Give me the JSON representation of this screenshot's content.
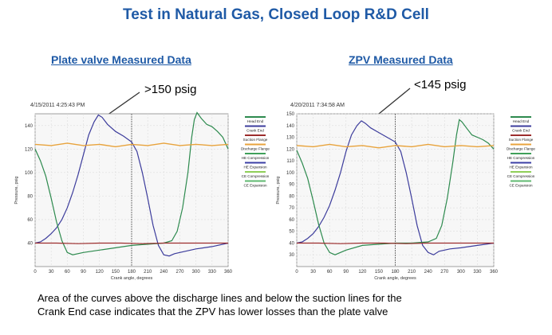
{
  "slide_title": "Test in Natural Gas, Closed Loop R&D Cell",
  "caption": {
    "line1": "Area of the curves above the discharge lines and below the suction lines for the",
    "line2": "Crank End case indicates that the ZPV has lower losses than the plate valve"
  },
  "colors": {
    "head_end": "#2d8a4e",
    "crank_end": "#3c3c9c",
    "suction_flange": "#9c2c2c",
    "discharge_flange": "#e8a33c",
    "he_compression": "#3fa05a",
    "he_expansion": "#3b3fa5",
    "ce_compression": "#8fcf58",
    "ce_expansion": "#5fb870"
  },
  "chart_data": [
    {
      "type": "line",
      "heading": "Plate valve Measured Data",
      "timestamp": "4/15/2011 4:25:43 PM",
      "callout": ">150 psig",
      "xlabel": "Crank angle, degrees",
      "ylabel": "Pressure, psig",
      "xlim": [
        0,
        360
      ],
      "ylim": [
        20,
        150
      ],
      "x_ticks": [
        0,
        30,
        60,
        90,
        120,
        150,
        180,
        210,
        240,
        270,
        300,
        330,
        360
      ],
      "y_ticks": [
        40,
        60,
        80,
        100,
        120,
        140
      ],
      "vline_x": 180,
      "legend": [
        "Head End",
        "Crank End",
        "Suction Flange",
        "Discharge Flange",
        "HE Compression",
        "HE Expansion",
        "CE Compression",
        "CE Expansion"
      ],
      "series": [
        {
          "key": "crank_end",
          "points": [
            [
              0,
              40
            ],
            [
              10,
              41
            ],
            [
              20,
              44
            ],
            [
              30,
              48
            ],
            [
              40,
              53
            ],
            [
              50,
              60
            ],
            [
              60,
              70
            ],
            [
              70,
              83
            ],
            [
              80,
              98
            ],
            [
              90,
              115
            ],
            [
              100,
              132
            ],
            [
              110,
              143
            ],
            [
              118,
              149
            ],
            [
              125,
              147
            ],
            [
              135,
              141
            ],
            [
              150,
              135
            ],
            [
              165,
              131
            ],
            [
              180,
              126
            ],
            [
              190,
              118
            ],
            [
              200,
              100
            ],
            [
              210,
              78
            ],
            [
              220,
              55
            ],
            [
              230,
              38
            ],
            [
              240,
              30
            ],
            [
              250,
              29
            ],
            [
              260,
              31
            ],
            [
              280,
              33
            ],
            [
              300,
              35
            ],
            [
              330,
              37
            ],
            [
              360,
              40
            ]
          ]
        },
        {
          "key": "head_end",
          "points": [
            [
              0,
              120
            ],
            [
              10,
              110
            ],
            [
              20,
              97
            ],
            [
              30,
              78
            ],
            [
              40,
              58
            ],
            [
              50,
              42
            ],
            [
              60,
              32
            ],
            [
              70,
              30
            ],
            [
              90,
              32
            ],
            [
              120,
              34
            ],
            [
              150,
              36
            ],
            [
              180,
              38
            ],
            [
              210,
              39
            ],
            [
              240,
              40
            ],
            [
              255,
              42
            ],
            [
              265,
              50
            ],
            [
              275,
              70
            ],
            [
              285,
              100
            ],
            [
              292,
              130
            ],
            [
              297,
              145
            ],
            [
              302,
              151
            ],
            [
              310,
              146
            ],
            [
              320,
              141
            ],
            [
              330,
              139
            ],
            [
              340,
              135
            ],
            [
              350,
              130
            ],
            [
              360,
              120
            ]
          ]
        },
        {
          "key": "suction_flange",
          "points": [
            [
              0,
              40
            ],
            [
              40,
              40
            ],
            [
              80,
              39.5
            ],
            [
              120,
              40
            ],
            [
              160,
              40
            ],
            [
              200,
              39.5
            ],
            [
              240,
              40
            ],
            [
              280,
              40
            ],
            [
              320,
              40
            ],
            [
              360,
              40
            ]
          ]
        },
        {
          "key": "discharge_flange",
          "points": [
            [
              0,
              124
            ],
            [
              30,
              123
            ],
            [
              60,
              125
            ],
            [
              90,
              123
            ],
            [
              120,
              124
            ],
            [
              150,
              122
            ],
            [
              180,
              124
            ],
            [
              210,
              123
            ],
            [
              240,
              125
            ],
            [
              270,
              123
            ],
            [
              300,
              124
            ],
            [
              330,
              123
            ],
            [
              360,
              124
            ]
          ]
        }
      ]
    },
    {
      "type": "line",
      "heading": "ZPV Measured Data",
      "timestamp": "4/20/2011 7:34:58 AM",
      "callout": "<145 psig",
      "xlabel": "Crank angle, degrees",
      "ylabel": "Pressure, psig",
      "xlim": [
        0,
        360
      ],
      "ylim": [
        20,
        150
      ],
      "x_ticks": [
        0,
        30,
        60,
        90,
        120,
        150,
        180,
        210,
        240,
        270,
        300,
        330,
        360
      ],
      "y_ticks": [
        30,
        40,
        50,
        60,
        70,
        80,
        90,
        100,
        110,
        120,
        130,
        140,
        150
      ],
      "vline_x": 180,
      "legend": [
        "Head End",
        "Crank End",
        "Suction Flange",
        "Discharge Flange",
        "HE Compression",
        "HE Expansion",
        "CE Compression",
        "CE Expansion"
      ],
      "series": [
        {
          "key": "crank_end",
          "points": [
            [
              0,
              40
            ],
            [
              10,
              41
            ],
            [
              20,
              44
            ],
            [
              30,
              48
            ],
            [
              40,
              54
            ],
            [
              50,
              62
            ],
            [
              60,
              72
            ],
            [
              70,
              85
            ],
            [
              80,
              100
            ],
            [
              90,
              118
            ],
            [
              100,
              132
            ],
            [
              110,
              140
            ],
            [
              118,
              144
            ],
            [
              125,
              142
            ],
            [
              135,
              138
            ],
            [
              150,
              134
            ],
            [
              165,
              130
            ],
            [
              180,
              126
            ],
            [
              190,
              118
            ],
            [
              200,
              100
            ],
            [
              210,
              78
            ],
            [
              220,
              55
            ],
            [
              230,
              38
            ],
            [
              240,
              32
            ],
            [
              250,
              30
            ],
            [
              260,
              33
            ],
            [
              280,
              35
            ],
            [
              300,
              36
            ],
            [
              330,
              38
            ],
            [
              360,
              40
            ]
          ]
        },
        {
          "key": "head_end",
          "points": [
            [
              0,
              119
            ],
            [
              10,
              108
            ],
            [
              20,
              95
            ],
            [
              30,
              76
            ],
            [
              40,
              56
            ],
            [
              50,
              40
            ],
            [
              60,
              32
            ],
            [
              70,
              30
            ],
            [
              90,
              34
            ],
            [
              120,
              38
            ],
            [
              150,
              39
            ],
            [
              180,
              40
            ],
            [
              210,
              40
            ],
            [
              240,
              41
            ],
            [
              255,
              44
            ],
            [
              265,
              55
            ],
            [
              275,
              78
            ],
            [
              285,
              108
            ],
            [
              292,
              132
            ],
            [
              297,
              145
            ],
            [
              302,
              143
            ],
            [
              310,
              138
            ],
            [
              320,
              132
            ],
            [
              330,
              130
            ],
            [
              340,
              128
            ],
            [
              350,
              125
            ],
            [
              360,
              120
            ]
          ]
        },
        {
          "key": "suction_flange",
          "points": [
            [
              0,
              40
            ],
            [
              40,
              40
            ],
            [
              80,
              39.5
            ],
            [
              120,
              40
            ],
            [
              160,
              40
            ],
            [
              200,
              39.5
            ],
            [
              240,
              40
            ],
            [
              280,
              40
            ],
            [
              320,
              40
            ],
            [
              360,
              40
            ]
          ]
        },
        {
          "key": "discharge_flange",
          "points": [
            [
              0,
              123
            ],
            [
              30,
              122
            ],
            [
              60,
              124
            ],
            [
              90,
              122
            ],
            [
              120,
              123
            ],
            [
              150,
              121
            ],
            [
              180,
              123
            ],
            [
              210,
              122
            ],
            [
              240,
              124
            ],
            [
              270,
              122
            ],
            [
              300,
              123
            ],
            [
              330,
              122
            ],
            [
              360,
              123
            ]
          ]
        }
      ]
    }
  ]
}
